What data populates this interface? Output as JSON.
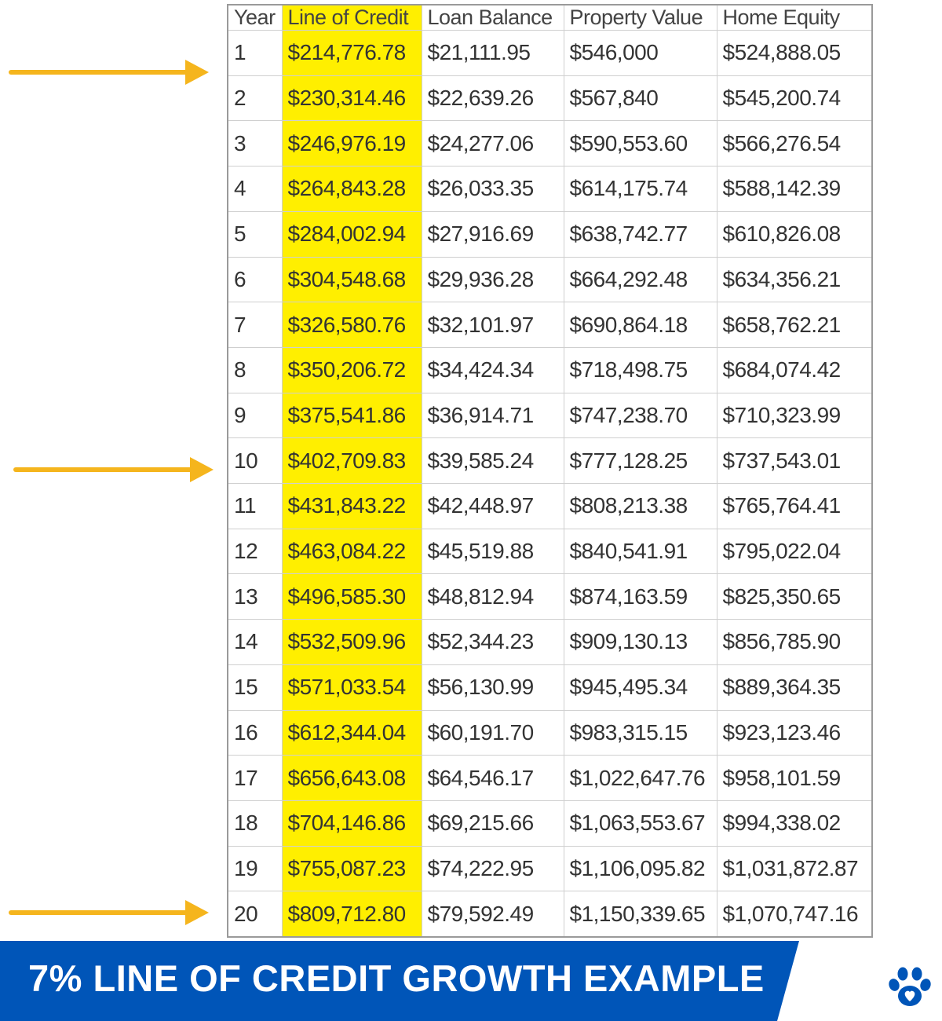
{
  "banner": {
    "title": "7% LINE OF CREDIT GROWTH EXAMPLE",
    "bg_color": "#0055b8",
    "logo_icon": "paw-print-icon"
  },
  "colors": {
    "highlight": "#ffef00",
    "arrow": "#f5b51d",
    "banner": "#0055b8"
  },
  "arrows": {
    "icon": "right-arrow-icon",
    "points_to_years": [
      "1",
      "10",
      "20"
    ]
  },
  "chart_data": {
    "type": "table",
    "highlighted_column": "Line of Credit",
    "columns": [
      "Year",
      "Line of Credit",
      "Loan Balance",
      "Property Value",
      "Home Equity"
    ],
    "rows": [
      [
        "1",
        "$214,776.78",
        "$21,111.95",
        "$546,000",
        "$524,888.05"
      ],
      [
        "2",
        "$230,314.46",
        "$22,639.26",
        "$567,840",
        "$545,200.74"
      ],
      [
        "3",
        "$246,976.19",
        "$24,277.06",
        "$590,553.60",
        "$566,276.54"
      ],
      [
        "4",
        "$264,843.28",
        "$26,033.35",
        "$614,175.74",
        "$588,142.39"
      ],
      [
        "5",
        "$284,002.94",
        "$27,916.69",
        "$638,742.77",
        "$610,826.08"
      ],
      [
        "6",
        "$304,548.68",
        "$29,936.28",
        "$664,292.48",
        "$634,356.21"
      ],
      [
        "7",
        "$326,580.76",
        "$32,101.97",
        "$690,864.18",
        "$658,762.21"
      ],
      [
        "8",
        "$350,206.72",
        "$34,424.34",
        "$718,498.75",
        "$684,074.42"
      ],
      [
        "9",
        "$375,541.86",
        "$36,914.71",
        "$747,238.70",
        "$710,323.99"
      ],
      [
        "10",
        "$402,709.83",
        "$39,585.24",
        "$777,128.25",
        "$737,543.01"
      ],
      [
        "11",
        "$431,843.22",
        "$42,448.97",
        "$808,213.38",
        "$765,764.41"
      ],
      [
        "12",
        "$463,084.22",
        "$45,519.88",
        "$840,541.91",
        "$795,022.04"
      ],
      [
        "13",
        "$496,585.30",
        "$48,812.94",
        "$874,163.59",
        "$825,350.65"
      ],
      [
        "14",
        "$532,509.96",
        "$52,344.23",
        "$909,130.13",
        "$856,785.90"
      ],
      [
        "15",
        "$571,033.54",
        "$56,130.99",
        "$945,495.34",
        "$889,364.35"
      ],
      [
        "16",
        "$612,344.04",
        "$60,191.70",
        "$983,315.15",
        "$923,123.46"
      ],
      [
        "17",
        "$656,643.08",
        "$64,546.17",
        "$1,022,647.76",
        "$958,101.59"
      ],
      [
        "18",
        "$704,146.86",
        "$69,215.66",
        "$1,063,553.67",
        "$994,338.02"
      ],
      [
        "19",
        "$755,087.23",
        "$74,222.95",
        "$1,106,095.82",
        "$1,031,872.87"
      ],
      [
        "20",
        "$809,712.80",
        "$79,592.49",
        "$1,150,339.65",
        "$1,070,747.16"
      ]
    ]
  }
}
